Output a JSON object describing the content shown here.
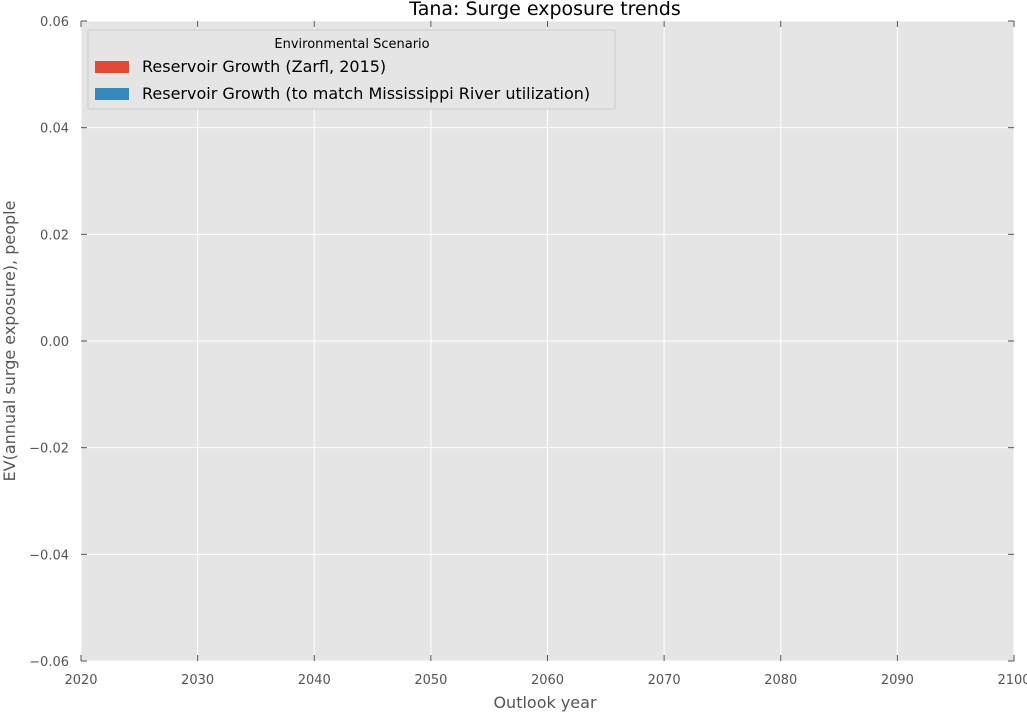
{
  "chart_data": {
    "type": "bar",
    "title": "Tana: Surge exposure trends",
    "xlabel": "Outlook year",
    "ylabel": "EV(annual surge exposure), people",
    "xlim": [
      2020,
      2100
    ],
    "ylim": [
      -0.06,
      0.06
    ],
    "x_ticks": [
      2020,
      2030,
      2040,
      2050,
      2060,
      2070,
      2080,
      2090,
      2100
    ],
    "y_ticks": [
      0.06,
      0.04,
      0.02,
      0.0,
      -0.02,
      -0.04,
      -0.06
    ],
    "y_tick_labels": [
      "0.06",
      "0.04",
      "0.02",
      "0.00",
      "−0.02",
      "−0.04",
      "−0.06"
    ],
    "grid": true,
    "legend": {
      "title": "Environmental Scenario",
      "placement": "upper-left"
    },
    "series": [
      {
        "name": "Reservoir Growth (Zarfl, 2015)",
        "color": "#E24A33",
        "x": [],
        "values": []
      },
      {
        "name": "Reservoir Growth (to match Mississippi River utilization)",
        "color": "#348ABD",
        "x": [],
        "values": []
      }
    ],
    "colors": {
      "plot_background": "#E5E5E5",
      "grid": "#FFFFFF",
      "tick_text": "#555555"
    }
  }
}
